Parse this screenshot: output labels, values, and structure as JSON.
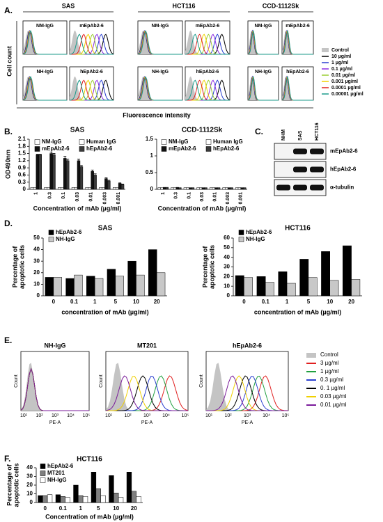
{
  "panel_labels": [
    "A.",
    "B.",
    "C.",
    "D.",
    "E.",
    "F."
  ],
  "panel_a": {
    "groups": [
      "SAS",
      "HCT116",
      "CCD-1112Sk"
    ],
    "rows": [
      [
        "NM-IgG",
        "mEpAb2-6",
        "NM-IgG",
        "mEpAb2-6",
        "NM-IgG",
        "mEpAb2-6"
      ],
      [
        "NH-IgG",
        "hEpAb2-6",
        "NH-IgG",
        "hEpAb2-6",
        "NH-IgG",
        "hEpAb2-6"
      ]
    ],
    "y_label": "Cell count",
    "x_label": "Fluorescence intensity",
    "legend": [
      {
        "name": "Control",
        "color": "#c4c4c4"
      },
      {
        "name": "10 µg/ml",
        "color": "#000000"
      },
      {
        "name": "1 µg/ml",
        "color": "#2a3fd0"
      },
      {
        "name": "0.1 µg/ml",
        "color": "#8a2be2"
      },
      {
        "name": "0.01 µg/ml",
        "color": "#9acd32"
      },
      {
        "name": "0.001 µg/ml",
        "color": "#f0d000"
      },
      {
        "name": "0.0001 µg/ml",
        "color": "#e02020"
      },
      {
        "name": "0.00001 µg/ml",
        "color": "#1a9a8a"
      }
    ]
  },
  "panel_c": {
    "lanes": [
      "NHM",
      "SAS",
      "HCT116"
    ],
    "rows": [
      "mEpAb2-6",
      "hEpAb2-6",
      "α-tubulin"
    ]
  },
  "panel_e": {
    "plots": [
      "NH-IgG",
      "MT201",
      "hEpAb2-6"
    ],
    "x_ticks": [
      "10¹",
      "10²",
      "10³",
      "10⁴",
      "10⁵"
    ],
    "x_label": "PE-A",
    "y_label": "Count",
    "legend": [
      {
        "name": "Control",
        "color": "#c4c4c4"
      },
      {
        "name": "3 µg/ml",
        "color": "#e02020"
      },
      {
        "name": "1 µg/ml",
        "color": "#20a040"
      },
      {
        "name": "0.3 µg/ml",
        "color": "#2a3fd0"
      },
      {
        "name": "0. 1 µg/ml",
        "color": "#000000"
      },
      {
        "name": "0.03 µg/ml",
        "color": "#f0d000"
      },
      {
        "name": "0.01 µg/ml",
        "color": "#7a1a9a"
      }
    ]
  },
  "chart_data": [
    {
      "type": "bar",
      "title": "SAS",
      "y_label": [
        "OD490nm"
      ],
      "x_label": "Concentration of mAb (µg/ml)",
      "categories": [
        "1",
        "0.3",
        "0.1",
        "0.03",
        "0.01",
        "0.003",
        "0.001"
      ],
      "series": [
        {
          "name": "NM-IgG",
          "color": "#ffffff",
          "values": [
            0.08,
            0.08,
            0.08,
            0.08,
            0.08,
            0.08,
            0.08
          ]
        },
        {
          "name": "Human IgG",
          "color": "#ffffff",
          "values": [
            0.08,
            0.08,
            0.08,
            0.08,
            0.08,
            0.08,
            0.08
          ]
        },
        {
          "name": "mEpAb2-6",
          "color": "#111111",
          "values": [
            1.45,
            1.5,
            1.3,
            1.2,
            0.75,
            0.45,
            0.25
          ],
          "errors": [
            0.02,
            0.06,
            0.08,
            0.06,
            0.06,
            0.03,
            0.02
          ]
        },
        {
          "name": "hEpAb2-6",
          "color": "#3a3a3a",
          "values": [
            1.45,
            1.45,
            1.2,
            0.95,
            0.6,
            0.35,
            0.2
          ],
          "errors": [
            0.02,
            0.05,
            0.06,
            0.05,
            0.05,
            0.03,
            0.02
          ]
        }
      ],
      "ylim": [
        0,
        2.1
      ],
      "yticks": [
        0,
        0.3,
        0.6,
        0.9,
        1.2,
        1.5,
        1.8,
        2.1
      ]
    },
    {
      "type": "bar",
      "title": "CCD-1112Sk",
      "y_label": [],
      "x_label": "Concentration of mAb (µg/ml)",
      "categories": [
        "1",
        "0.3",
        "0.1",
        "0.03",
        "0.01",
        "0.003",
        "0.001"
      ],
      "series": [
        {
          "name": "NM-IgG",
          "color": "#ffffff",
          "values": [
            0.05,
            0.05,
            0.05,
            0.05,
            0.05,
            0.05,
            0.05
          ]
        },
        {
          "name": "Human IgG",
          "color": "#ffffff",
          "values": [
            0.05,
            0.05,
            0.05,
            0.05,
            0.05,
            0.05,
            0.05
          ]
        },
        {
          "name": "mEpAb2-6",
          "color": "#111111",
          "values": [
            0.06,
            0.06,
            0.05,
            0.05,
            0.05,
            0.05,
            0.05
          ]
        },
        {
          "name": "hEpAb2-6",
          "color": "#3a3a3a",
          "values": [
            0.06,
            0.05,
            0.05,
            0.05,
            0.05,
            0.05,
            0.05
          ]
        }
      ],
      "ylim": [
        0,
        1.5
      ],
      "yticks": [
        0,
        0.5,
        1,
        1.5
      ]
    },
    {
      "type": "bar",
      "title": "SAS",
      "y_label": [
        "Percentage of",
        "apoptotic cells"
      ],
      "x_label": "concentration of mAb (µg/ml)",
      "categories": [
        "0",
        "0.1",
        "1",
        "5",
        "10",
        "20"
      ],
      "series": [
        {
          "name": "hEpAb2-6",
          "color": "#000000",
          "values": [
            16,
            15,
            17,
            23,
            30,
            40
          ]
        },
        {
          "name": "NH-IgG",
          "color": "#c8c8c8",
          "values": [
            16,
            18,
            15,
            17,
            18,
            20
          ]
        }
      ],
      "ylim": [
        0,
        50
      ],
      "yticks": [
        0,
        10,
        20,
        30,
        40,
        50
      ]
    },
    {
      "type": "bar",
      "title": "HCT116",
      "y_label": [
        "Percentage of",
        "apoptotic cells"
      ],
      "x_label": "concentration of mAb (µg/ml)",
      "categories": [
        "0",
        "0.1",
        "1",
        "5",
        "10",
        "20"
      ],
      "series": [
        {
          "name": "hEpAb2-6",
          "color": "#000000",
          "values": [
            21,
            20,
            25,
            38,
            46,
            52
          ]
        },
        {
          "name": "NH-IgG",
          "color": "#c8c8c8",
          "values": [
            19,
            14,
            13,
            19,
            16,
            17
          ]
        }
      ],
      "ylim": [
        0,
        60
      ],
      "yticks": [
        0,
        10,
        20,
        30,
        40,
        50,
        60
      ]
    },
    {
      "type": "bar",
      "title": "HCT116",
      "y_label": [
        "Percentage of",
        "apoptotic cells"
      ],
      "x_label": "Concentration of mAb (µg/ml)",
      "categories": [
        "0",
        "0.1",
        "1",
        "5",
        "10",
        "20"
      ],
      "series": [
        {
          "name": "hEpAb2-6",
          "color": "#000000",
          "values": [
            8,
            9,
            20,
            35,
            31,
            35
          ]
        },
        {
          "name": "MT201",
          "color": "#808080",
          "values": [
            8,
            7,
            8,
            16,
            11,
            13
          ]
        },
        {
          "name": "NH-IgG",
          "color": "#ffffff",
          "values": [
            9,
            6,
            7,
            8,
            6,
            7
          ]
        }
      ],
      "ylim": [
        0,
        40
      ],
      "yticks": [
        0,
        10,
        20,
        30,
        40
      ]
    }
  ]
}
